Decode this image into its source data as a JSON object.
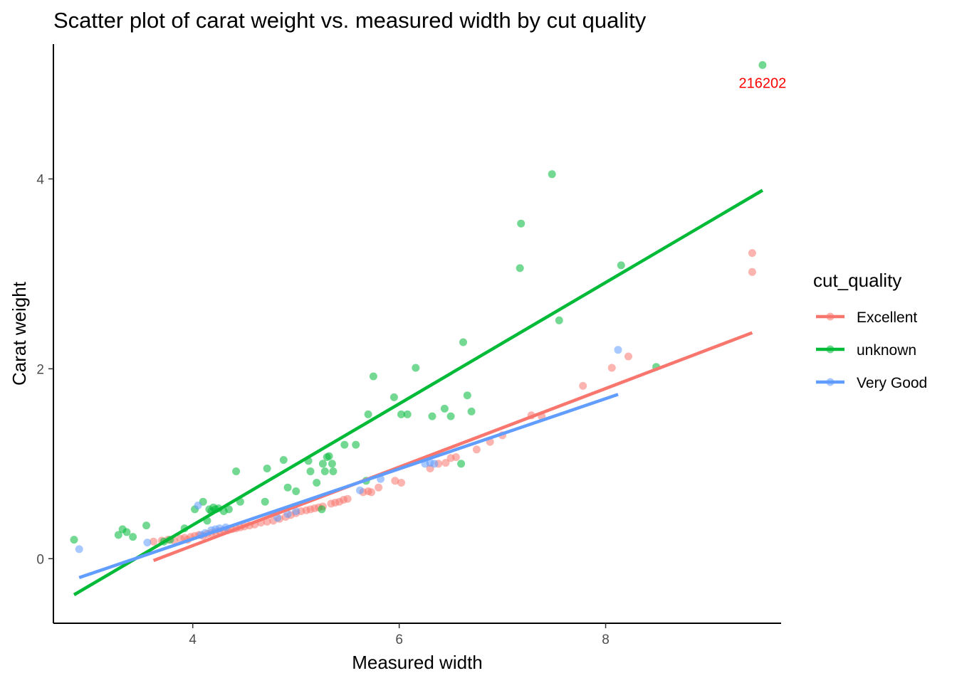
{
  "chart_data": {
    "type": "scatter",
    "title": "Scatter plot of carat weight vs. measured width by cut quality",
    "xlabel": "Measured width",
    "ylabel": "Carat weight",
    "xlim": [
      2.65,
      9.7
    ],
    "ylim": [
      -0.68,
      5.42
    ],
    "x_ticks": [
      4,
      6,
      8
    ],
    "y_ticks": [
      0,
      2,
      4
    ],
    "grid": false,
    "legend": {
      "title": "cut_quality",
      "position": "right"
    },
    "series": [
      {
        "name": "Excellent",
        "color": "#F8766D",
        "points": [
          [
            3.62,
            0.18
          ],
          [
            3.7,
            0.19
          ],
          [
            3.76,
            0.2
          ],
          [
            3.82,
            0.19
          ],
          [
            3.88,
            0.21
          ],
          [
            3.92,
            0.22
          ],
          [
            3.95,
            0.2
          ],
          [
            3.98,
            0.23
          ],
          [
            4.02,
            0.24
          ],
          [
            4.06,
            0.25
          ],
          [
            4.1,
            0.24
          ],
          [
            4.14,
            0.26
          ],
          [
            4.18,
            0.27
          ],
          [
            4.22,
            0.28
          ],
          [
            4.26,
            0.29
          ],
          [
            4.3,
            0.3
          ],
          [
            4.34,
            0.3
          ],
          [
            4.38,
            0.31
          ],
          [
            4.42,
            0.32
          ],
          [
            4.46,
            0.33
          ],
          [
            4.5,
            0.34
          ],
          [
            4.55,
            0.35
          ],
          [
            4.6,
            0.36
          ],
          [
            4.66,
            0.38
          ],
          [
            4.72,
            0.39
          ],
          [
            4.78,
            0.4
          ],
          [
            4.84,
            0.42
          ],
          [
            4.9,
            0.44
          ],
          [
            4.95,
            0.46
          ],
          [
            5.0,
            0.48
          ],
          [
            5.05,
            0.5
          ],
          [
            5.1,
            0.51
          ],
          [
            5.14,
            0.52
          ],
          [
            5.18,
            0.53
          ],
          [
            5.22,
            0.54
          ],
          [
            5.26,
            0.55
          ],
          [
            5.34,
            0.58
          ],
          [
            5.38,
            0.59
          ],
          [
            5.42,
            0.6
          ],
          [
            5.46,
            0.62
          ],
          [
            5.5,
            0.63
          ],
          [
            5.65,
            0.7
          ],
          [
            5.7,
            0.71
          ],
          [
            5.73,
            0.7
          ],
          [
            5.8,
            0.75
          ],
          [
            5.96,
            0.82
          ],
          [
            6.02,
            0.8
          ],
          [
            6.3,
            0.95
          ],
          [
            6.38,
            1.0
          ],
          [
            6.45,
            1.01
          ],
          [
            6.5,
            1.06
          ],
          [
            6.55,
            1.07
          ],
          [
            6.75,
            1.15
          ],
          [
            6.88,
            1.23
          ],
          [
            7.0,
            1.3
          ],
          [
            7.28,
            1.51
          ],
          [
            7.38,
            1.5
          ],
          [
            7.78,
            1.82
          ],
          [
            8.06,
            2.01
          ],
          [
            8.22,
            2.13
          ],
          [
            9.42,
            3.22
          ],
          [
            9.42,
            3.02
          ]
        ],
        "fit": [
          [
            3.62,
            -0.02
          ],
          [
            9.42,
            2.38
          ]
        ]
      },
      {
        "name": "unknown",
        "color": "#00BA38",
        "points": [
          [
            2.85,
            0.2
          ],
          [
            3.28,
            0.25
          ],
          [
            3.32,
            0.31
          ],
          [
            3.36,
            0.28
          ],
          [
            3.42,
            0.23
          ],
          [
            3.55,
            0.35
          ],
          [
            3.72,
            0.18
          ],
          [
            3.78,
            0.2
          ],
          [
            3.92,
            0.32
          ],
          [
            4.02,
            0.52
          ],
          [
            4.1,
            0.6
          ],
          [
            4.14,
            0.4
          ],
          [
            4.16,
            0.52
          ],
          [
            4.18,
            0.5
          ],
          [
            4.2,
            0.54
          ],
          [
            4.22,
            0.52
          ],
          [
            4.25,
            0.53
          ],
          [
            4.3,
            0.5
          ],
          [
            4.35,
            0.52
          ],
          [
            4.42,
            0.92
          ],
          [
            4.46,
            0.6
          ],
          [
            4.7,
            0.6
          ],
          [
            4.72,
            0.95
          ],
          [
            4.88,
            1.04
          ],
          [
            4.92,
            0.75
          ],
          [
            5.0,
            0.71
          ],
          [
            5.12,
            1.03
          ],
          [
            5.14,
            0.92
          ],
          [
            5.2,
            0.8
          ],
          [
            5.25,
            0.52
          ],
          [
            5.26,
            1.0
          ],
          [
            5.28,
            0.92
          ],
          [
            5.3,
            1.07
          ],
          [
            5.32,
            1.08
          ],
          [
            5.35,
            1.0
          ],
          [
            5.36,
            0.92
          ],
          [
            5.47,
            1.2
          ],
          [
            5.58,
            1.2
          ],
          [
            5.68,
            0.82
          ],
          [
            5.7,
            1.52
          ],
          [
            5.75,
            1.92
          ],
          [
            5.95,
            1.7
          ],
          [
            6.02,
            1.52
          ],
          [
            6.08,
            1.52
          ],
          [
            6.16,
            2.01
          ],
          [
            6.32,
            1.5
          ],
          [
            6.44,
            1.58
          ],
          [
            6.5,
            1.5
          ],
          [
            6.6,
            1.0
          ],
          [
            6.62,
            2.28
          ],
          [
            6.66,
            1.72
          ],
          [
            6.7,
            1.55
          ],
          [
            7.17,
            3.06
          ],
          [
            7.18,
            3.53
          ],
          [
            7.48,
            4.05
          ],
          [
            7.55,
            2.51
          ],
          [
            8.15,
            3.09
          ],
          [
            8.49,
            2.02
          ],
          [
            9.52,
            5.2
          ]
        ],
        "fit": [
          [
            2.85,
            -0.38
          ],
          [
            9.52,
            3.88
          ]
        ]
      },
      {
        "name": "Very Good",
        "color": "#619CFF",
        "points": [
          [
            2.9,
            0.1
          ],
          [
            3.56,
            0.17
          ],
          [
            4.05,
            0.56
          ],
          [
            4.08,
            0.25
          ],
          [
            4.12,
            0.27
          ],
          [
            4.18,
            0.3
          ],
          [
            4.22,
            0.31
          ],
          [
            4.26,
            0.32
          ],
          [
            4.32,
            0.33
          ],
          [
            4.82,
            0.43
          ],
          [
            4.92,
            0.47
          ],
          [
            5.0,
            0.5
          ],
          [
            5.62,
            0.72
          ],
          [
            5.82,
            0.84
          ],
          [
            6.25,
            1.0
          ],
          [
            6.3,
            1.01
          ],
          [
            6.34,
            1.0
          ],
          [
            8.12,
            2.2
          ]
        ],
        "fit": [
          [
            2.9,
            -0.2
          ],
          [
            8.12,
            1.73
          ]
        ]
      }
    ],
    "annotations": [
      {
        "text": "216202",
        "x": 9.52,
        "y": 5.01
      }
    ]
  }
}
